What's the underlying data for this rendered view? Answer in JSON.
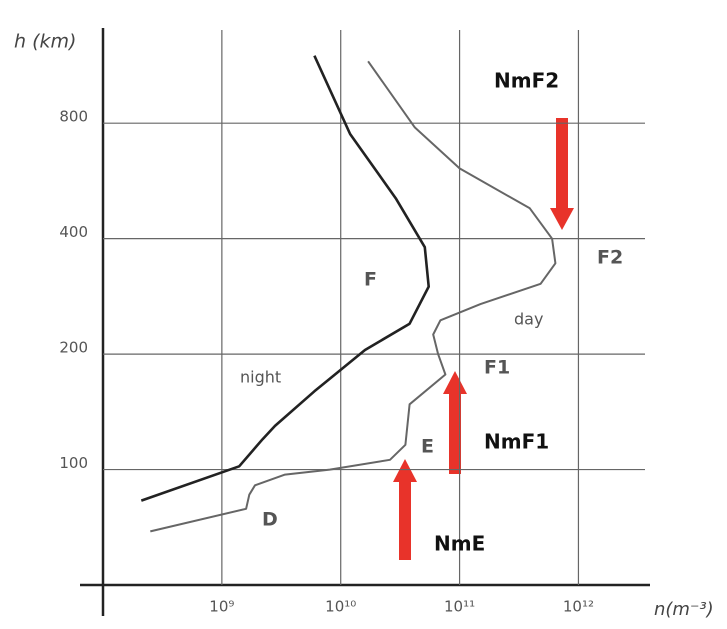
{
  "chart_data": {
    "type": "line",
    "xlabel": "n(m⁻³)",
    "ylabel": "h (km)",
    "xscale": "log",
    "yscale": "log",
    "grid": true,
    "xlim": [
      100000000,
      4000000000000
    ],
    "ylim": [
      50,
      1400
    ],
    "xticks": [
      {
        "value": 1000000000,
        "label": "10⁹"
      },
      {
        "value": 10000000000,
        "label": "10¹⁰"
      },
      {
        "value": 100000000000,
        "label": "10¹¹"
      },
      {
        "value": 1000000000000,
        "label": "10¹²"
      }
    ],
    "yticks": [
      100,
      200,
      400,
      800
    ],
    "series": [
      {
        "name": "night",
        "color": "#222222",
        "x": [
          6000000000,
          12000000000,
          29000000000,
          51000000000,
          55000000000,
          38000000000,
          16000000000,
          6000000000,
          2800000000,
          2200000000,
          1400000000,
          210000000
        ],
        "values": [
          1200,
          750,
          510,
          380,
          300,
          240,
          205,
          160,
          130,
          120,
          102,
          83
        ]
      },
      {
        "name": "day",
        "color": "#666666",
        "x": [
          17000000000,
          42000000000,
          100000000000,
          390000000000,
          600000000000,
          640000000000,
          480000000000,
          150000000000,
          69000000000,
          60000000000,
          66000000000,
          76000000000,
          38000000000,
          35000000000,
          26000000000,
          8100000000,
          3400000000,
          1900000000,
          1700000000,
          1600000000,
          250000000
        ],
        "values": [
          1160,
          780,
          610,
          480,
          400,
          345,
          305,
          270,
          245,
          225,
          200,
          177,
          148,
          116,
          106,
          100,
          97,
          91,
          86,
          79,
          69
        ]
      }
    ],
    "annotations": [
      "NmF2",
      "F2",
      "F",
      "F1",
      "E",
      "NmF1",
      "D",
      "NmE"
    ]
  }
}
